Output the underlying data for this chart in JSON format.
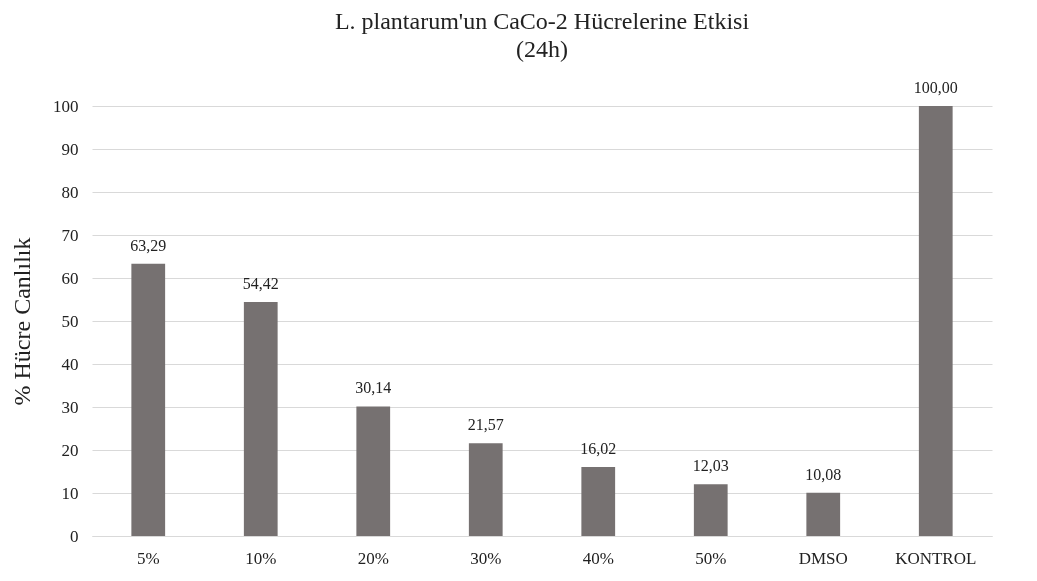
{
  "chart_data": {
    "type": "bar",
    "title": "L. plantarum'un CaCo-2 Hücrelerine Etkisi",
    "subtitle": "(24h)",
    "ylabel": "% Hücre Canlılık",
    "categories": [
      "5%",
      "10%",
      "20%",
      "30%",
      "40%",
      "50%",
      "DMSO",
      "KONTROL"
    ],
    "values": [
      63.29,
      54.42,
      30.14,
      21.57,
      16.02,
      12.03,
      10.08,
      100.0
    ],
    "value_labels": [
      "63,29",
      "54,42",
      "30,14",
      "21,57",
      "16,02",
      "12,03",
      "10,08",
      "100,00"
    ],
    "color": "#767171",
    "ylim": [
      0,
      100
    ],
    "yticks": [
      0,
      10,
      20,
      30,
      40,
      50,
      60,
      70,
      80,
      90,
      100
    ],
    "grid": "y"
  }
}
